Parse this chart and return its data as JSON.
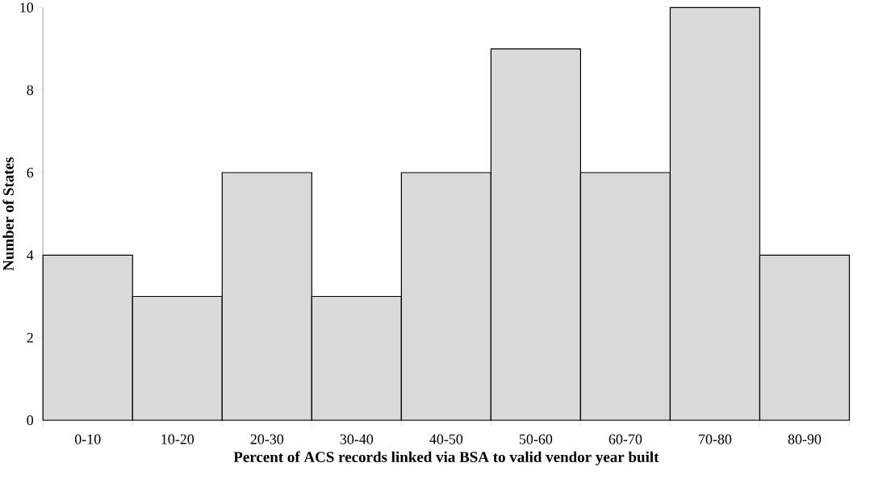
{
  "chart_data": {
    "type": "bar",
    "xlabel": "Percent of ACS records linked via BSA to valid vendor year built",
    "ylabel": "Number of States",
    "categories": [
      "0-10",
      "10-20",
      "20-30",
      "30-40",
      "40-50",
      "50-60",
      "60-70",
      "70-80",
      "80-90"
    ],
    "values": [
      4,
      3,
      6,
      3,
      6,
      9,
      6,
      10,
      4
    ],
    "color": "#d9d9d9",
    "ylim": [
      0,
      10
    ],
    "yticks": [
      0,
      2,
      4,
      6,
      8,
      10
    ]
  }
}
